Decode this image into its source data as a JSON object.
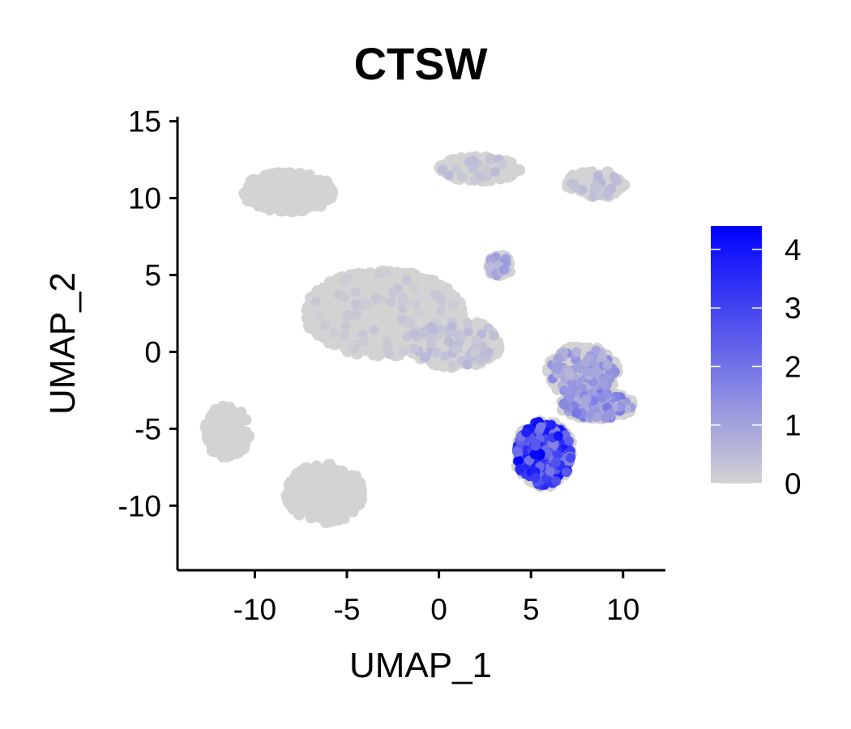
{
  "chart_data": {
    "type": "scatter",
    "title": "CTSW",
    "xlabel": "UMAP_1",
    "ylabel": "UMAP_2",
    "xlim": [
      -14.2,
      12.3
    ],
    "ylim": [
      -14.2,
      15.3
    ],
    "x_ticks": [
      -10,
      -5,
      0,
      5,
      10
    ],
    "x_tick_labels": [
      "-10",
      "-5",
      "0",
      "5",
      "10"
    ],
    "y_ticks": [
      15,
      10,
      5,
      0,
      -5,
      -10
    ],
    "y_tick_labels": [
      "15",
      "10",
      "5",
      "0",
      "-5",
      "-10"
    ],
    "grid": false,
    "legend": {
      "type": "colorbar",
      "placement": "right",
      "min": 0,
      "max": 4.4,
      "ticks": [
        0,
        1,
        2,
        3,
        4
      ],
      "tick_labels": [
        "0",
        "1",
        "2",
        "3",
        "4"
      ],
      "low_color": "#d3d3d3",
      "high_color": "#0000ff"
    },
    "point_color_null": "#d3d3d3",
    "clusters": [
      {
        "name": "top-left",
        "cx": -8.1,
        "cy": 10.4,
        "rx": 2.6,
        "ry": 1.3,
        "expr_max": 0.0
      },
      {
        "name": "upper-center",
        "cx": 2.2,
        "cy": 11.9,
        "rx": 2.2,
        "ry": 0.8,
        "expr_max": 0.5
      },
      {
        "name": "upper-right",
        "cx": 8.5,
        "cy": 10.9,
        "rx": 1.6,
        "ry": 0.9,
        "expr_max": 0.6
      },
      {
        "name": "small-mid-right",
        "cx": 3.3,
        "cy": 5.6,
        "rx": 0.7,
        "ry": 0.7,
        "expr_max": 1.2
      },
      {
        "name": "central",
        "cx": -3.0,
        "cy": 2.5,
        "rx": 4.3,
        "ry": 2.8,
        "expr_max": 0.3
      },
      {
        "name": "central-tail",
        "cx": 0.8,
        "cy": 0.6,
        "rx": 2.6,
        "ry": 1.6,
        "expr_max": 0.6
      },
      {
        "name": "left-small",
        "cx": -11.5,
        "cy": -5.2,
        "rx": 1.2,
        "ry": 1.7,
        "expr_max": 0.0
      },
      {
        "name": "bottom-left",
        "cx": -6.2,
        "cy": -9.2,
        "rx": 2.1,
        "ry": 1.9,
        "expr_max": 0.0
      },
      {
        "name": "right-upper",
        "cx": 7.8,
        "cy": -1.3,
        "rx": 1.9,
        "ry": 1.7,
        "expr_max": 1.5
      },
      {
        "name": "right-band",
        "cx": 8.6,
        "cy": -3.5,
        "rx": 2.0,
        "ry": 0.9,
        "expr_max": 2.0
      },
      {
        "name": "nk-bottom",
        "cx": 5.7,
        "cy": -6.6,
        "rx": 1.6,
        "ry": 2.2,
        "expr_max": 4.4
      }
    ]
  }
}
